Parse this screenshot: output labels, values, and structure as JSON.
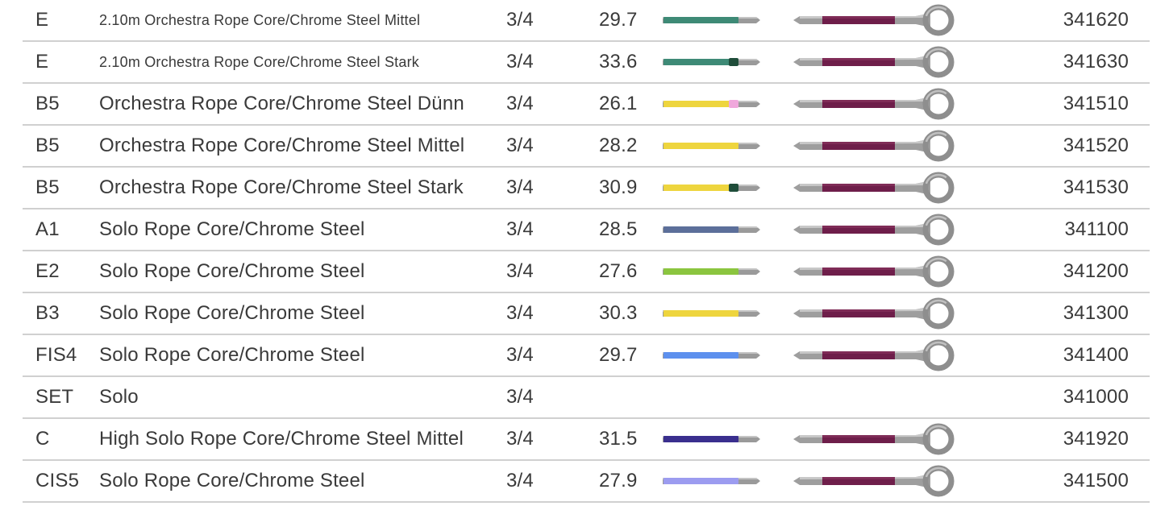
{
  "rows": [
    {
      "note": "E",
      "description": "2.10m Orchestra Rope Core/Chrome Steel Mittel",
      "size": "3/4",
      "gauge": "29.7",
      "article": "341620",
      "color": "#3e8a76",
      "cap": "",
      "small": true
    },
    {
      "note": "E",
      "description": "2.10m Orchestra Rope Core/Chrome Steel Stark",
      "size": "3/4",
      "gauge": "33.6",
      "article": "341630",
      "color": "#3e8a76",
      "cap": "#1f4d3a",
      "small": true
    },
    {
      "note": "B5",
      "description": "Orchestra Rope Core/Chrome Steel Dünn",
      "size": "3/4",
      "gauge": "26.1",
      "article": "341510",
      "color": "#eed53e",
      "cap": "#f0a8dc",
      "small": false
    },
    {
      "note": "B5",
      "description": "Orchestra Rope Core/Chrome Steel Mittel",
      "size": "3/4",
      "gauge": "28.2",
      "article": "341520",
      "color": "#eed53e",
      "cap": "",
      "small": false
    },
    {
      "note": "B5",
      "description": "Orchestra Rope Core/Chrome Steel Stark",
      "size": "3/4",
      "gauge": "30.9",
      "article": "341530",
      "color": "#eed53e",
      "cap": "#1f4d3a",
      "small": false
    },
    {
      "note": "A1",
      "description": "Solo Rope Core/Chrome Steel",
      "size": "3/4",
      "gauge": "28.5",
      "article": "341100",
      "color": "#5c6f9a",
      "cap": "",
      "small": false
    },
    {
      "note": "E2",
      "description": "Solo Rope Core/Chrome Steel",
      "size": "3/4",
      "gauge": "27.6",
      "article": "341200",
      "color": "#8bc53f",
      "cap": "",
      "small": false
    },
    {
      "note": "B3",
      "description": "Solo Rope Core/Chrome Steel",
      "size": "3/4",
      "gauge": "30.3",
      "article": "341300",
      "color": "#eed53e",
      "cap": "",
      "small": false
    },
    {
      "note": "FIS4",
      "description": "Solo Rope Core/Chrome Steel",
      "size": "3/4",
      "gauge": "29.7",
      "article": "341400",
      "color": "#5d90ee",
      "cap": "",
      "small": false
    },
    {
      "note": "SET",
      "description": "Solo",
      "size": "3/4",
      "gauge": "",
      "article": "341000",
      "color": "",
      "cap": "",
      "small": false
    },
    {
      "note": "C",
      "description": "High Solo Rope Core/Chrome Steel Mittel",
      "size": "3/4",
      "gauge": "31.5",
      "article": "341920",
      "color": "#3a2f8e",
      "cap": "",
      "small": false
    },
    {
      "note": "CIS5",
      "description": "Solo Rope Core/Chrome Steel",
      "size": "3/4",
      "gauge": "27.9",
      "article": "341500",
      "color": "#9c9cf0",
      "cap": "",
      "small": false
    }
  ],
  "ball_end_color": "#6e1e4a"
}
